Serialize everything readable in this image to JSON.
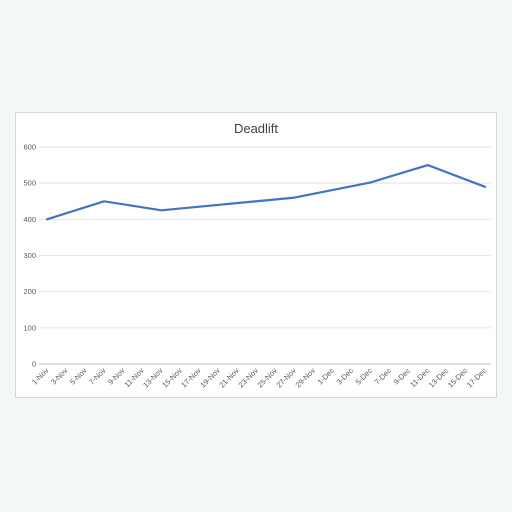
{
  "chart_data": {
    "type": "line",
    "title": "Deadlift",
    "xlabel": "",
    "ylabel": "",
    "ylim": [
      0,
      600
    ],
    "yticks": [
      0,
      100,
      200,
      300,
      400,
      500,
      600
    ],
    "grid": "horizontal",
    "line_color": "#4472c4",
    "categories": [
      "1-Nov",
      "3-Nov",
      "5-Nov",
      "7-Nov",
      "9-Nov",
      "11-Nov",
      "13-Nov",
      "15-Nov",
      "17-Nov",
      "19-Nov",
      "21-Nov",
      "23-Nov",
      "25-Nov",
      "27-Nov",
      "29-Nov",
      "1-Dec",
      "3-Dec",
      "5-Dec",
      "7-Dec",
      "9-Dec",
      "11-Dec",
      "13-Dec",
      "15-Dec",
      "17-Dec"
    ],
    "series": [
      {
        "x": [
          "1-Nov",
          "7-Nov",
          "13-Nov",
          "27-Nov",
          "5-Dec",
          "11-Dec",
          "17-Dec"
        ],
        "values": [
          400,
          450,
          425,
          460,
          502,
          550,
          490
        ]
      }
    ]
  }
}
